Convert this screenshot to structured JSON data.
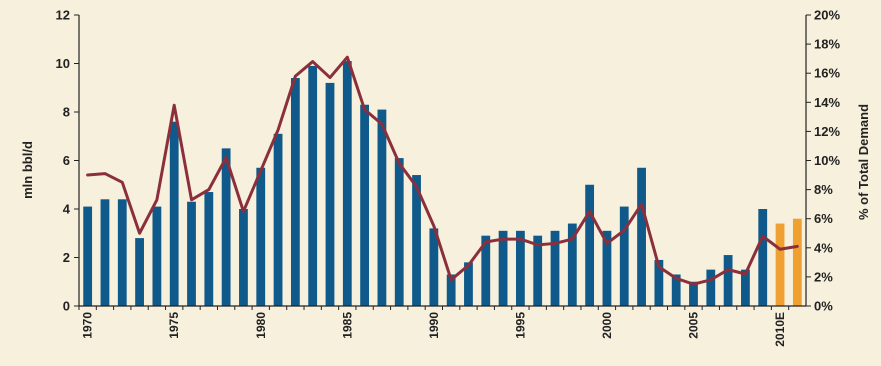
{
  "chart_data": {
    "type": "bar",
    "title": "",
    "xlabel": "",
    "ylabel": "mln bbl/d",
    "y2label": "% of Total Demand",
    "ylim": [
      0,
      12
    ],
    "y2lim": [
      0,
      0.2
    ],
    "yticks": [
      "0",
      "2",
      "4",
      "6",
      "8",
      "10",
      "12"
    ],
    "y2ticks": [
      "0%",
      "2%",
      "4%",
      "6%",
      "8%",
      "10%",
      "12%",
      "14%",
      "16%",
      "18%",
      "20%"
    ],
    "x": [
      1970,
      1971,
      1972,
      1973,
      1974,
      1975,
      1976,
      1977,
      1978,
      1979,
      1980,
      1981,
      1982,
      1983,
      1984,
      1985,
      1986,
      1987,
      1988,
      1989,
      1990,
      1991,
      1992,
      1993,
      1994,
      1995,
      1996,
      1997,
      1998,
      1999,
      2000,
      2001,
      2002,
      2003,
      2004,
      2005,
      2006,
      2007,
      2008,
      2009,
      2010,
      2011
    ],
    "xticklabels": [
      "1970",
      "",
      "",
      "",
      "",
      "1975",
      "",
      "",
      "",
      "",
      "1980",
      "",
      "",
      "",
      "",
      "1985",
      "",
      "",
      "",
      "",
      "1990",
      "",
      "",
      "",
      "",
      "1995",
      "",
      "",
      "",
      "",
      "2000",
      "",
      "",
      "",
      "",
      "2005",
      "",
      "",
      "",
      "",
      "2010E",
      ""
    ],
    "series": [
      {
        "kind": "bar",
        "axis": "left",
        "values": [
          4.1,
          4.4,
          4.4,
          2.8,
          4.1,
          7.6,
          4.3,
          4.7,
          6.5,
          4.0,
          5.7,
          7.1,
          9.4,
          9.9,
          9.2,
          10.1,
          8.3,
          8.1,
          6.1,
          5.4,
          3.2,
          1.3,
          1.8,
          2.9,
          3.1,
          3.1,
          2.9,
          3.1,
          3.4,
          5.0,
          3.1,
          4.1,
          5.7,
          1.9,
          1.3,
          1.0,
          1.5,
          2.1,
          1.5,
          4.0,
          3.4,
          3.6
        ],
        "colors": {
          "actual": "#0f5a8a",
          "estimate": "#f0a030"
        },
        "estimate_from_index": 40
      },
      {
        "kind": "line",
        "axis": "right",
        "color": "#8b2f3c",
        "values": [
          0.09,
          0.091,
          0.085,
          0.05,
          0.073,
          0.138,
          0.073,
          0.08,
          0.102,
          0.065,
          0.093,
          0.121,
          0.158,
          0.168,
          0.157,
          0.171,
          0.135,
          0.125,
          0.098,
          0.082,
          0.055,
          0.018,
          0.028,
          0.044,
          0.046,
          0.046,
          0.042,
          0.043,
          0.046,
          0.065,
          0.043,
          0.052,
          0.07,
          0.027,
          0.019,
          0.015,
          0.018,
          0.025,
          0.022,
          0.048,
          0.039,
          0.041
        ]
      }
    ],
    "grid": false
  }
}
